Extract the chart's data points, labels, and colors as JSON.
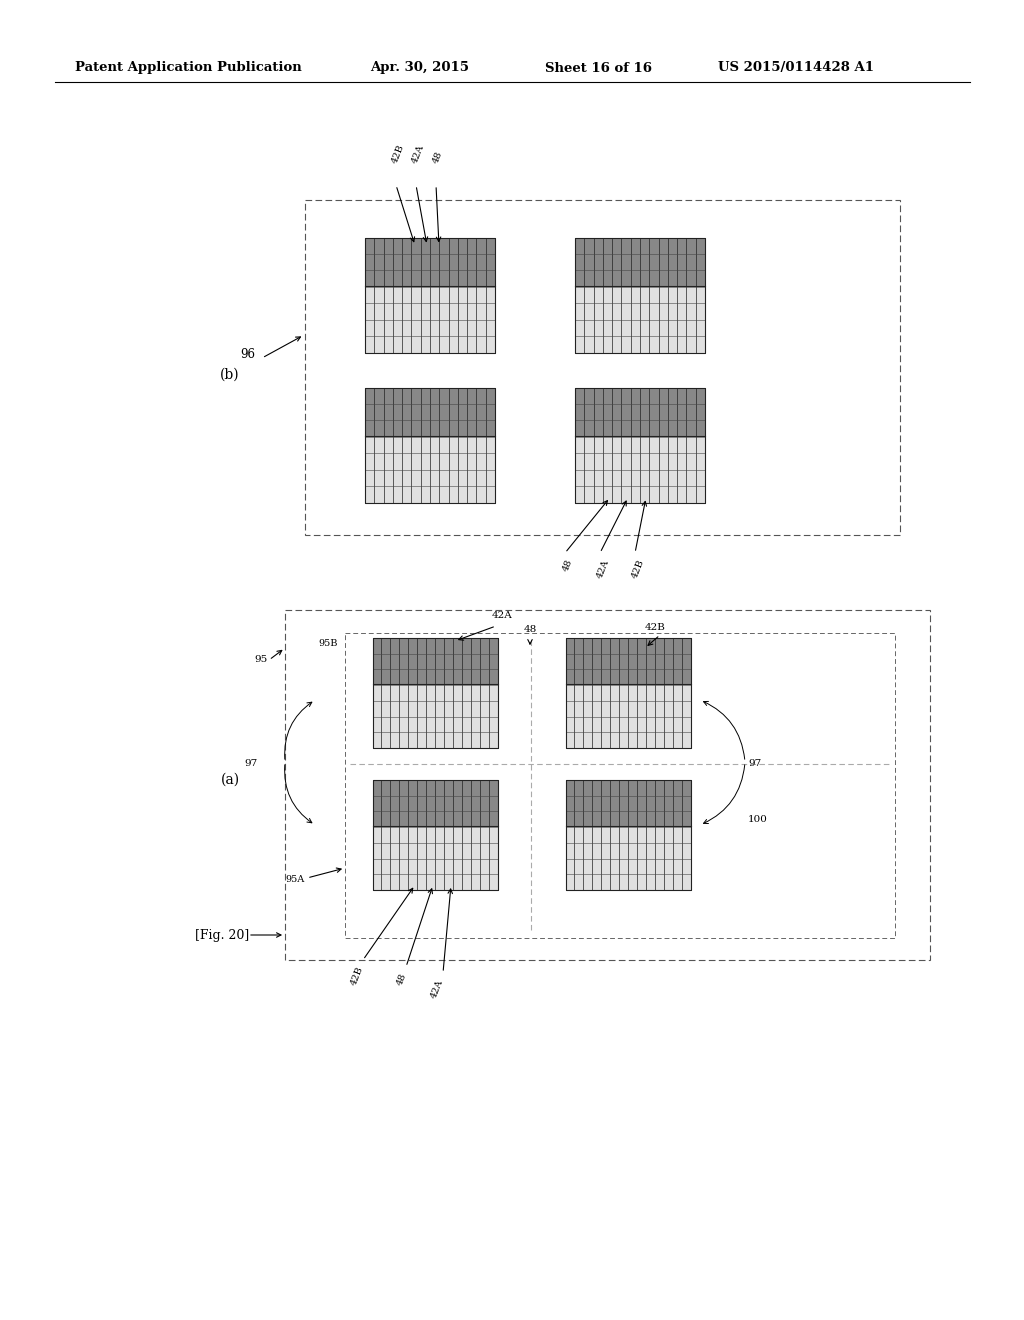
{
  "bg_color": "#ffffff",
  "header_left": "Patent Application Publication",
  "header_mid1": "Apr. 30, 2015",
  "header_mid2": "Sheet 16 of 16",
  "header_right": "US 2015/0114428 A1",
  "fig_label": "[Fig. 20]",
  "panel_b_label": "(b)",
  "panel_a_label": "(a)",
  "label_96": "96",
  "label_95": "95",
  "label_95A": "95A",
  "label_95B": "95B",
  "label_97": "97",
  "label_100": "100",
  "label_42A": "42A",
  "label_42B": "42B",
  "label_48": "48",
  "component_face": "#e8e8e8",
  "component_stripe_dark": "#555555",
  "component_stripe_light": "#d0d0d0",
  "component_edge": "#444444",
  "component_mid_dark": "#888888",
  "line_color": "#333333",
  "box_color": "#555555"
}
